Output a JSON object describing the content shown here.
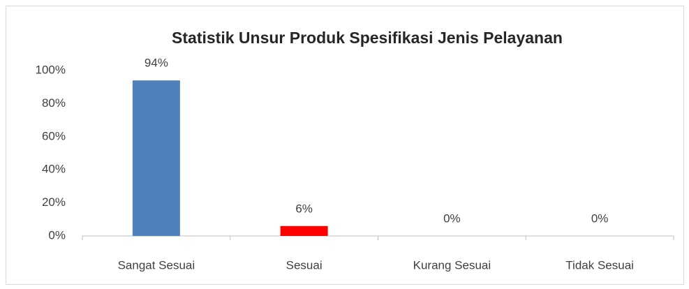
{
  "chart_data": {
    "type": "bar",
    "title": "Statistik Unsur Produk Spesifikasi Jenis Pelayanan",
    "categories": [
      "Sangat Sesuai",
      "Sesuai",
      "Kurang Sesuai",
      "Tidak Sesuai"
    ],
    "values": [
      94,
      6,
      0,
      0
    ],
    "value_labels": [
      "94%",
      "6%",
      "0%",
      "0%"
    ],
    "colors": [
      "#4f81bd",
      "#ff0000",
      "#4f81bd",
      "#4f81bd"
    ],
    "ylim": [
      0,
      100
    ],
    "yticks": [
      {
        "value": 0,
        "label": "0%"
      },
      {
        "value": 20,
        "label": "20%"
      },
      {
        "value": 40,
        "label": "40%"
      },
      {
        "value": 60,
        "label": "60%"
      },
      {
        "value": 80,
        "label": "80%"
      },
      {
        "value": 100,
        "label": "100%"
      }
    ],
    "grid": false
  }
}
